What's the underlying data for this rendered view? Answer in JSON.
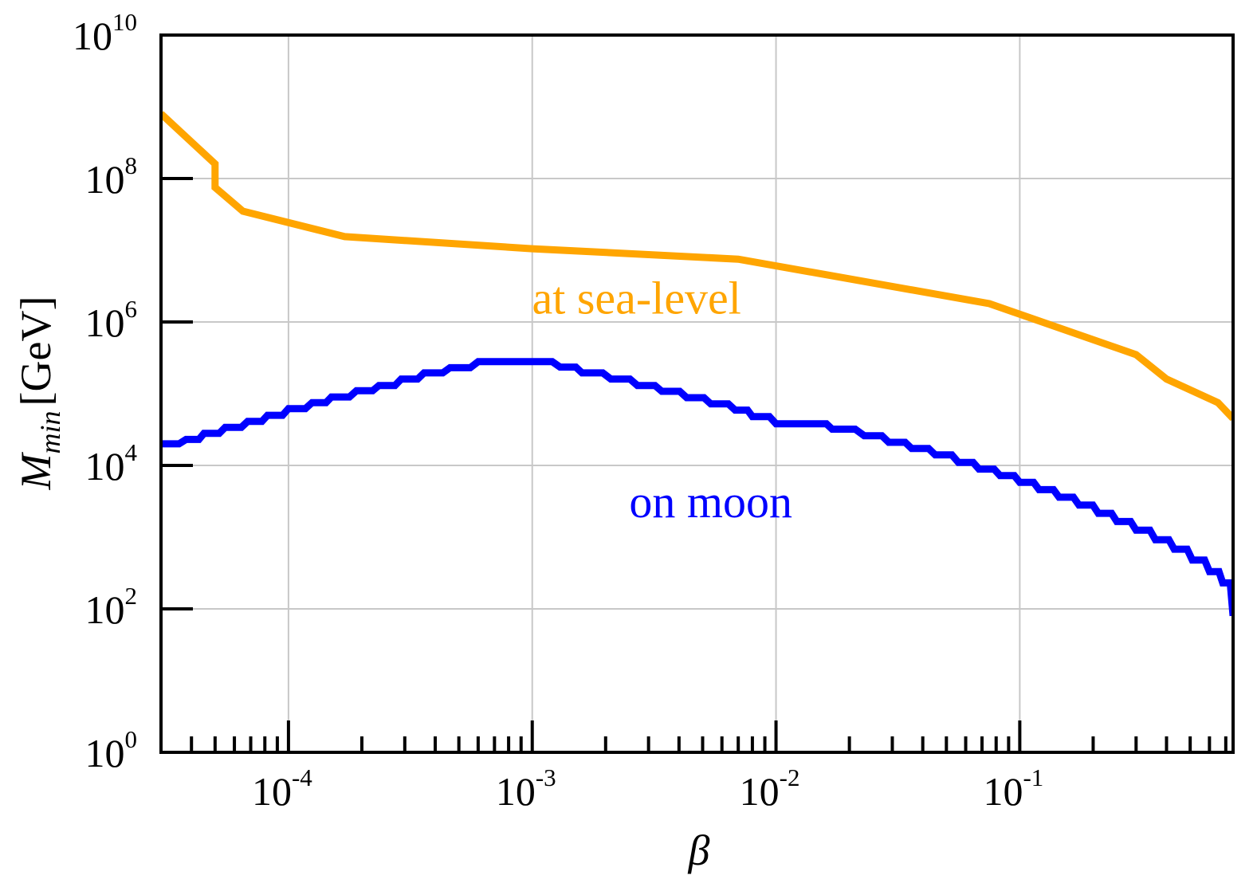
{
  "chart_data": {
    "type": "line",
    "xlabel": "β",
    "ylabel": {
      "main": "M",
      "sub": "min",
      "unit": "[GeV]"
    },
    "x_scale": "log",
    "y_scale": "log",
    "xlim": [
      3e-05,
      0.75
    ],
    "ylim": [
      1,
      10000000000.0
    ],
    "grid": true,
    "x_major_ticks": [
      {
        "value": 0.0001,
        "base": "10",
        "exp": "-4"
      },
      {
        "value": 0.001,
        "base": "10",
        "exp": "-3"
      },
      {
        "value": 0.01,
        "base": "10",
        "exp": "-2"
      },
      {
        "value": 0.1,
        "base": "10",
        "exp": "-1"
      }
    ],
    "y_major_ticks": [
      {
        "value": 1,
        "base": "10",
        "exp": "0"
      },
      {
        "value": 100,
        "base": "10",
        "exp": "2"
      },
      {
        "value": 10000,
        "base": "10",
        "exp": "4"
      },
      {
        "value": 1000000,
        "base": "10",
        "exp": "6"
      },
      {
        "value": 100000000,
        "base": "10",
        "exp": "8"
      },
      {
        "value": 10000000000,
        "base": "10",
        "exp": "10"
      }
    ],
    "series": [
      {
        "name": "at sea-level",
        "color": "#FFA500",
        "points": [
          [
            3e-05,
            800000000.0
          ],
          [
            5e-05,
            160000000.0
          ],
          [
            5e-05,
            75000000.0
          ],
          [
            6.5e-05,
            35000000.0
          ],
          [
            0.00017,
            15500000.0
          ],
          [
            0.001,
            10500000.0
          ],
          [
            0.007,
            7500000.0
          ],
          [
            0.075,
            1800000.0
          ],
          [
            0.3,
            350000.0
          ],
          [
            0.4,
            160000.0
          ],
          [
            0.65,
            75000.0
          ],
          [
            0.75,
            45000.0
          ]
        ]
      },
      {
        "name": "on moon",
        "color": "#0000FF",
        "step": true,
        "points": [
          [
            3e-05,
            20000.0
          ],
          [
            3.8e-05,
            23000.0
          ],
          [
            4.5e-05,
            28000.0
          ],
          [
            5.5e-05,
            34000.0
          ],
          [
            6.8e-05,
            41000.0
          ],
          [
            8.2e-05,
            50000.0
          ],
          [
            0.0001,
            62000.0
          ],
          [
            0.000125,
            75000.0
          ],
          [
            0.00015,
            90000.0
          ],
          [
            0.00019,
            110000.0
          ],
          [
            0.000235,
            130000.0
          ],
          [
            0.00029,
            160000.0
          ],
          [
            0.00036,
            195000.0
          ],
          [
            0.00046,
            230000.0
          ],
          [
            0.0006,
            280000.0
          ],
          [
            0.001,
            280000.0
          ],
          [
            0.0013,
            235000.0
          ],
          [
            0.0016,
            195000.0
          ],
          [
            0.0021,
            160000.0
          ],
          [
            0.0027,
            130000.0
          ],
          [
            0.0034,
            108000.0
          ],
          [
            0.0043,
            88000.0
          ],
          [
            0.0054,
            72000.0
          ],
          [
            0.0068,
            59000.0
          ],
          [
            0.008,
            48000.0
          ],
          [
            0.01,
            38000.0
          ],
          [
            0.014,
            38000.0
          ],
          [
            0.017,
            32000.0
          ],
          [
            0.023,
            26000.0
          ],
          [
            0.029,
            21000.0
          ],
          [
            0.036,
            17200.0
          ],
          [
            0.045,
            14000.0
          ],
          [
            0.056,
            11000.0
          ],
          [
            0.068,
            8900.0
          ],
          [
            0.083,
            7200.0
          ],
          [
            0.1,
            5800.0
          ],
          [
            0.12,
            4600.0
          ],
          [
            0.145,
            3600.0
          ],
          [
            0.175,
            2800.0
          ],
          [
            0.21,
            2150.0
          ],
          [
            0.25,
            1650.0
          ],
          [
            0.3,
            1250.0
          ],
          [
            0.36,
            920
          ],
          [
            0.43,
            680
          ],
          [
            0.51,
            480
          ],
          [
            0.6,
            330
          ],
          [
            0.68,
            230
          ],
          [
            0.75,
            80
          ]
        ]
      }
    ],
    "annotations": [
      {
        "text": "at sea-level",
        "color": "#FFA500",
        "x": 0.0072,
        "y": 1300000.0,
        "anchor": "end"
      },
      {
        "text": "on moon",
        "color": "#0000FF",
        "x": 0.0025,
        "y": 1900.0,
        "anchor": "start"
      }
    ]
  }
}
